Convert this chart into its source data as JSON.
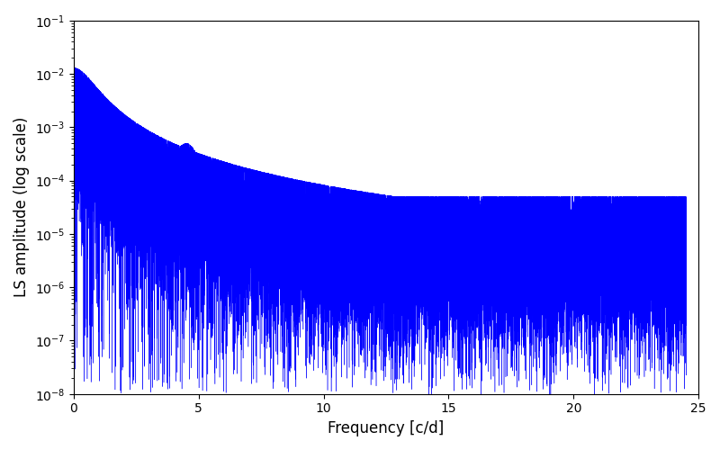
{
  "title": "",
  "xlabel": "Frequency [c/d]",
  "ylabel": "LS amplitude (log scale)",
  "xlim": [
    0,
    25
  ],
  "ylim": [
    1e-08,
    0.1
  ],
  "line_color": "blue",
  "line_width": 0.3,
  "background_color": "#ffffff",
  "freq_max": 24.5,
  "n_points": 30000,
  "seed": 7,
  "peak_freq": 0.8,
  "peak_amplitude": 0.013,
  "secondary_peak_freq": 4.5,
  "secondary_peak_amplitude": 0.0005
}
